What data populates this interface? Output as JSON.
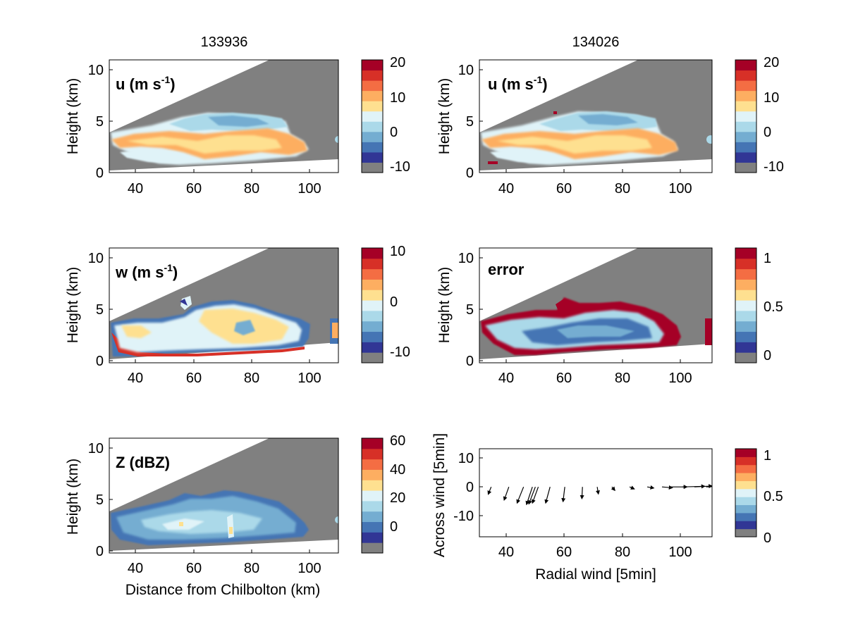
{
  "titles": {
    "left": "133936",
    "right": "134026"
  },
  "palette": [
    "#808080",
    "#313695",
    "#4575b4",
    "#74add1",
    "#abd9e9",
    "#e0f3f8",
    "#fee090",
    "#fdae61",
    "#f46d43",
    "#d73027",
    "#a50026"
  ],
  "panels": [
    {
      "id": "u-left",
      "label_main": "u (m s",
      "label_sup": "-1",
      "label_end": ")",
      "ylabel": "Height (km)",
      "xlabel": "",
      "cbar_ticks": [
        "20",
        "10",
        "0",
        "-10"
      ]
    },
    {
      "id": "u-right",
      "label_main": "u (m s",
      "label_sup": "-1",
      "label_end": ")",
      "ylabel": "Height (km)",
      "xlabel": "",
      "cbar_ticks": [
        "20",
        "10",
        "0",
        "-10"
      ]
    },
    {
      "id": "w-left",
      "label_main": "w (m s",
      "label_sup": "-1",
      "label_end": ")",
      "ylabel": "Height (km)",
      "xlabel": "",
      "cbar_ticks": [
        "10",
        "0",
        "-10"
      ]
    },
    {
      "id": "error-right",
      "label_main": "error",
      "label_sup": "",
      "label_end": "",
      "ylabel": "Height (km)",
      "xlabel": "",
      "cbar_ticks": [
        "1",
        "0.5",
        "0"
      ]
    },
    {
      "id": "z-left",
      "label_main": "Z (dBZ)",
      "label_sup": "",
      "label_end": "",
      "ylabel": "Height (km)",
      "xlabel": "Distance from Chilbolton (km)",
      "cbar_ticks": [
        "60",
        "40",
        "20",
        "0"
      ]
    },
    {
      "id": "wind-right",
      "label_main": "",
      "label_sup": "",
      "label_end": "",
      "ylabel": "Across wind [5min]",
      "xlabel": "Radial wind [5min]",
      "cbar_ticks": [
        "1",
        "0.5",
        "0"
      ]
    }
  ],
  "chart_data": [
    {
      "type": "heatmap",
      "title": "133936",
      "variable": "u (m s-1)",
      "ylabel": "Height (km)",
      "xlim": [
        31,
        110
      ],
      "ylim": [
        0,
        11
      ],
      "x_ticks": [
        40,
        60,
        80,
        100
      ],
      "y_ticks": [
        0,
        5,
        10
      ],
      "colorbar": {
        "range": [
          -12,
          20
        ],
        "ticks": [
          20,
          10,
          0,
          -10
        ]
      }
    },
    {
      "type": "heatmap",
      "title": "134026",
      "variable": "u (m s-1)",
      "ylabel": "Height (km)",
      "xlim": [
        31,
        110
      ],
      "ylim": [
        0,
        11
      ],
      "x_ticks": [
        40,
        60,
        80,
        100
      ],
      "y_ticks": [
        0,
        5,
        10
      ],
      "colorbar": {
        "range": [
          -12,
          20
        ],
        "ticks": [
          20,
          10,
          0,
          -10
        ]
      }
    },
    {
      "type": "heatmap",
      "variable": "w (m s-1)",
      "ylabel": "Height (km)",
      "xlim": [
        31,
        110
      ],
      "ylim": [
        0,
        11
      ],
      "x_ticks": [
        40,
        60,
        80,
        100
      ],
      "y_ticks": [
        0,
        5,
        10
      ],
      "colorbar": {
        "range": [
          -13,
          10
        ],
        "ticks": [
          10,
          0,
          -10
        ]
      }
    },
    {
      "type": "heatmap",
      "variable": "error",
      "ylabel": "Height (km)",
      "xlim": [
        31,
        110
      ],
      "ylim": [
        0,
        11
      ],
      "x_ticks": [
        40,
        60,
        80,
        100
      ],
      "y_ticks": [
        0,
        5,
        10
      ],
      "colorbar": {
        "range": [
          -0.1,
          1.08
        ],
        "ticks": [
          1,
          0.5,
          0
        ]
      }
    },
    {
      "type": "heatmap",
      "variable": "Z (dBZ)",
      "xlabel": "Distance from Chilbolton (km)",
      "ylabel": "Height (km)",
      "xlim": [
        31,
        110
      ],
      "ylim": [
        0,
        11
      ],
      "x_ticks": [
        40,
        60,
        80,
        100
      ],
      "y_ticks": [
        0,
        5,
        10
      ],
      "colorbar": {
        "range": [
          -18,
          62
        ],
        "ticks": [
          60,
          40,
          20,
          0
        ]
      }
    },
    {
      "type": "scatter",
      "subtype": "quiver",
      "xlabel": "Radial wind [5min]",
      "ylabel": "Across wind [5min]",
      "xlim": [
        31,
        110
      ],
      "ylim": [
        -18,
        12
      ],
      "x_ticks": [
        40,
        60,
        80,
        100
      ],
      "y_ticks": [
        10,
        0,
        -10
      ],
      "arrows": [
        {
          "x": 35,
          "y": -1,
          "u": -1.0,
          "v": -2.5
        },
        {
          "x": 41,
          "y": -1,
          "u": -1.6,
          "v": -4.5
        },
        {
          "x": 46,
          "y": -1,
          "u": -2.2,
          "v": -5.5
        },
        {
          "x": 49,
          "y": -1,
          "u": -2.0,
          "v": -6.0
        },
        {
          "x": 50,
          "y": -1,
          "u": -2.2,
          "v": -5.8
        },
        {
          "x": 51,
          "y": -1,
          "u": -2.0,
          "v": -5.5
        },
        {
          "x": 55,
          "y": -1,
          "u": -1.5,
          "v": -5.5
        },
        {
          "x": 60,
          "y": -1,
          "u": -0.6,
          "v": -5.0
        },
        {
          "x": 66,
          "y": -1,
          "u": -0.2,
          "v": -4.0
        },
        {
          "x": 71,
          "y": -1,
          "u": 0.4,
          "v": -2.4
        },
        {
          "x": 76,
          "y": -1,
          "u": 1.0,
          "v": -1.2
        },
        {
          "x": 82,
          "y": -1,
          "u": 1.6,
          "v": -0.7
        },
        {
          "x": 88,
          "y": -1,
          "u": 2.2,
          "v": -0.4
        },
        {
          "x": 93,
          "y": -1,
          "u": 3.5,
          "v": -0.3
        },
        {
          "x": 96,
          "y": -1,
          "u": 5.5,
          "v": 0.0
        },
        {
          "x": 100,
          "y": -1,
          "u": 7.5,
          "v": 0.2
        },
        {
          "x": 104,
          "y": -1,
          "u": 6.0,
          "v": 0.3
        },
        {
          "x": 108,
          "y": -1,
          "u": 4.0,
          "v": 0.2
        }
      ],
      "colorbar": {
        "range": [
          -0.1,
          1.08
        ],
        "ticks": [
          1,
          0.5,
          0
        ]
      }
    }
  ]
}
